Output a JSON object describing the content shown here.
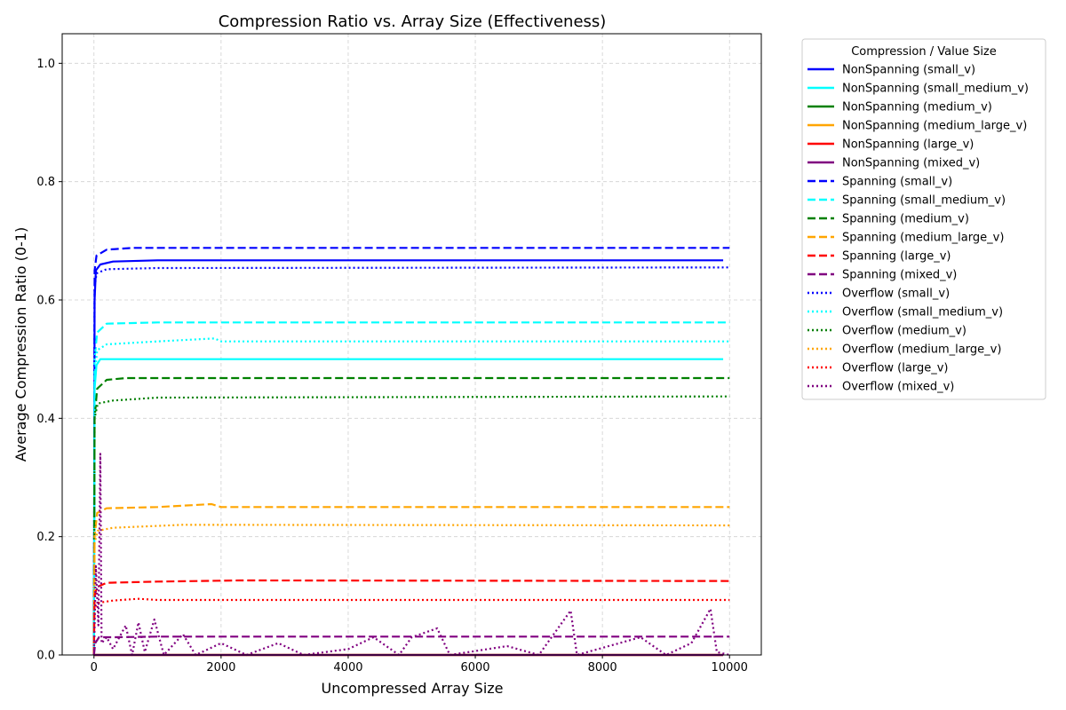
{
  "chart_data": {
    "type": "line",
    "title": "Compression Ratio vs. Array Size (Effectiveness)",
    "xlabel": "Uncompressed Array Size",
    "ylabel": "Average Compression Ratio (0-1)",
    "xlim": [
      -500,
      10500
    ],
    "ylim": [
      0,
      1.05
    ],
    "xticks": [
      0,
      2000,
      4000,
      6000,
      8000,
      10000
    ],
    "yticks": [
      0.0,
      0.2,
      0.4,
      0.6,
      0.8,
      1.0
    ],
    "xtick_labels": [
      "0",
      "2000",
      "4000",
      "6000",
      "8000",
      "10000"
    ],
    "ytick_labels": [
      "0.0",
      "0.2",
      "0.4",
      "0.6",
      "0.8",
      "1.0"
    ],
    "grid": true,
    "legend_title": "Compression / Value Size",
    "legend_position": "outside-right",
    "series": [
      {
        "name": "NonSpanning (small_v)",
        "color": "#0000ff",
        "style": "solid",
        "points": [
          [
            0,
            0.0
          ],
          [
            10,
            0.6
          ],
          [
            30,
            0.65
          ],
          [
            100,
            0.66
          ],
          [
            300,
            0.665
          ],
          [
            1000,
            0.667
          ],
          [
            5000,
            0.667
          ],
          [
            9900,
            0.667
          ]
        ]
      },
      {
        "name": "NonSpanning (small_medium_v)",
        "color": "#00ffff",
        "style": "solid",
        "points": [
          [
            0,
            0.0
          ],
          [
            10,
            0.45
          ],
          [
            40,
            0.49
          ],
          [
            100,
            0.5
          ],
          [
            600,
            0.5
          ],
          [
            5000,
            0.5
          ],
          [
            9900,
            0.5
          ]
        ]
      },
      {
        "name": "NonSpanning (medium_v)",
        "color": "#008000",
        "style": "solid",
        "points": [
          [
            0,
            0.0
          ],
          [
            10,
            0.0
          ],
          [
            9900,
            0.0
          ]
        ]
      },
      {
        "name": "NonSpanning (medium_large_v)",
        "color": "#ffa500",
        "style": "solid",
        "points": [
          [
            0,
            0.0
          ],
          [
            9900,
            0.0
          ]
        ]
      },
      {
        "name": "NonSpanning (large_v)",
        "color": "#ff0000",
        "style": "solid",
        "points": [
          [
            0,
            0.0
          ],
          [
            9900,
            0.0
          ]
        ]
      },
      {
        "name": "NonSpanning (mixed_v)",
        "color": "#800080",
        "style": "solid",
        "points": [
          [
            0,
            0.0
          ],
          [
            9900,
            0.0
          ]
        ]
      },
      {
        "name": "Spanning (small_v)",
        "color": "#0000ff",
        "style": "dashed",
        "points": [
          [
            0,
            0.0
          ],
          [
            10,
            0.65
          ],
          [
            40,
            0.675
          ],
          [
            200,
            0.685
          ],
          [
            600,
            0.688
          ],
          [
            2000,
            0.688
          ],
          [
            6000,
            0.688
          ],
          [
            10000,
            0.688
          ]
        ]
      },
      {
        "name": "Spanning (small_medium_v)",
        "color": "#00ffff",
        "style": "dashed",
        "points": [
          [
            0,
            0.0
          ],
          [
            10,
            0.5
          ],
          [
            50,
            0.545
          ],
          [
            200,
            0.56
          ],
          [
            1000,
            0.562
          ],
          [
            10000,
            0.562
          ]
        ]
      },
      {
        "name": "Spanning (medium_v)",
        "color": "#008000",
        "style": "dashed",
        "points": [
          [
            0,
            0.0
          ],
          [
            10,
            0.4
          ],
          [
            50,
            0.45
          ],
          [
            200,
            0.465
          ],
          [
            500,
            0.468
          ],
          [
            10000,
            0.468
          ]
        ]
      },
      {
        "name": "Spanning (medium_large_v)",
        "color": "#ffa500",
        "style": "dashed",
        "points": [
          [
            0,
            0.0
          ],
          [
            10,
            0.2
          ],
          [
            50,
            0.24
          ],
          [
            200,
            0.248
          ],
          [
            1000,
            0.25
          ],
          [
            1850,
            0.255
          ],
          [
            2000,
            0.25
          ],
          [
            10000,
            0.25
          ]
        ]
      },
      {
        "name": "Spanning (large_v)",
        "color": "#ff0000",
        "style": "dashed",
        "points": [
          [
            0,
            0.0
          ],
          [
            10,
            0.1
          ],
          [
            50,
            0.115
          ],
          [
            200,
            0.122
          ],
          [
            1000,
            0.124
          ],
          [
            2300,
            0.126
          ],
          [
            10000,
            0.125
          ]
        ]
      },
      {
        "name": "Spanning (mixed_v)",
        "color": "#800080",
        "style": "dashed",
        "points": [
          [
            0,
            0.0
          ],
          [
            20,
            0.02
          ],
          [
            80,
            0.03
          ],
          [
            300,
            0.03
          ],
          [
            1000,
            0.031
          ],
          [
            10000,
            0.031
          ]
        ]
      },
      {
        "name": "Overflow (small_v)",
        "color": "#0000ff",
        "style": "dotted",
        "points": [
          [
            0,
            0.0
          ],
          [
            10,
            0.62
          ],
          [
            40,
            0.645
          ],
          [
            200,
            0.652
          ],
          [
            1000,
            0.654
          ],
          [
            10000,
            0.655
          ]
        ]
      },
      {
        "name": "Overflow (small_medium_v)",
        "color": "#00ffff",
        "style": "dotted",
        "points": [
          [
            0,
            0.0
          ],
          [
            10,
            0.47
          ],
          [
            50,
            0.515
          ],
          [
            200,
            0.525
          ],
          [
            1000,
            0.53
          ],
          [
            1900,
            0.535
          ],
          [
            2000,
            0.53
          ],
          [
            10000,
            0.53
          ]
        ]
      },
      {
        "name": "Overflow (medium_v)",
        "color": "#008000",
        "style": "dotted",
        "points": [
          [
            0,
            0.0
          ],
          [
            10,
            0.4
          ],
          [
            60,
            0.425
          ],
          [
            300,
            0.43
          ],
          [
            1000,
            0.435
          ],
          [
            10000,
            0.437
          ]
        ]
      },
      {
        "name": "Overflow (medium_large_v)",
        "color": "#ffa500",
        "style": "dotted",
        "points": [
          [
            0,
            0.0
          ],
          [
            10,
            0.19
          ],
          [
            60,
            0.21
          ],
          [
            300,
            0.215
          ],
          [
            1400,
            0.22
          ],
          [
            10000,
            0.219
          ]
        ]
      },
      {
        "name": "Overflow (large_v)",
        "color": "#ff0000",
        "style": "dotted",
        "points": [
          [
            0,
            0.0
          ],
          [
            10,
            0.08
          ],
          [
            60,
            0.088
          ],
          [
            300,
            0.092
          ],
          [
            700,
            0.095
          ],
          [
            1000,
            0.093
          ],
          [
            10000,
            0.093
          ]
        ]
      },
      {
        "name": "Overflow (mixed_v)",
        "color": "#800080",
        "style": "dotted",
        "points": [
          [
            0,
            0.0
          ],
          [
            30,
            0.15
          ],
          [
            70,
            0.05
          ],
          [
            100,
            0.34
          ],
          [
            120,
            0.02
          ],
          [
            200,
            0.03
          ],
          [
            300,
            0.01
          ],
          [
            500,
            0.05
          ],
          [
            600,
            0.0
          ],
          [
            700,
            0.055
          ],
          [
            800,
            0.005
          ],
          [
            950,
            0.06
          ],
          [
            1100,
            0.0
          ],
          [
            1400,
            0.035
          ],
          [
            1600,
            0.0
          ],
          [
            2000,
            0.02
          ],
          [
            2400,
            0.0
          ],
          [
            2900,
            0.02
          ],
          [
            3300,
            0.0
          ],
          [
            4000,
            0.01
          ],
          [
            4400,
            0.03
          ],
          [
            4800,
            0.0
          ],
          [
            5000,
            0.03
          ],
          [
            5400,
            0.045
          ],
          [
            5600,
            0.0
          ],
          [
            6500,
            0.015
          ],
          [
            7000,
            0.0
          ],
          [
            7500,
            0.075
          ],
          [
            7600,
            0.0
          ],
          [
            8600,
            0.03
          ],
          [
            9000,
            0.0
          ],
          [
            9400,
            0.02
          ],
          [
            9700,
            0.078
          ],
          [
            9800,
            0.005
          ],
          [
            10000,
            0.0
          ]
        ]
      }
    ]
  }
}
